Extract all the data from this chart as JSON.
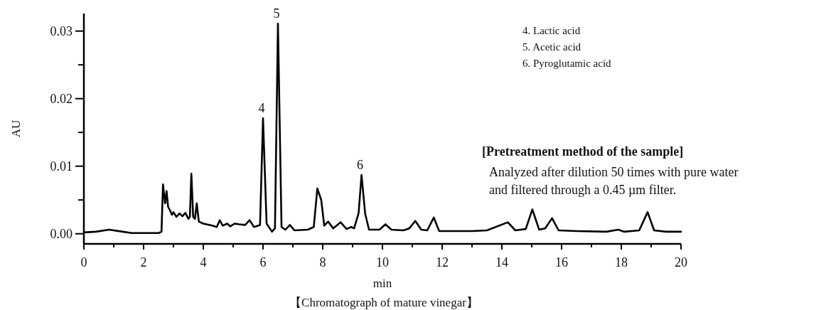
{
  "chart_data": {
    "type": "line",
    "title": "【Chromatograph of mature vinegar】",
    "xlabel": "min",
    "ylabel": "AU",
    "xlim": [
      0,
      20
    ],
    "ylim": [
      -0.0015,
      0.0326
    ],
    "xticks": [
      0,
      {
        "value": 1,
        "label": null
      },
      2,
      {
        "value": 3,
        "label": null
      },
      4,
      {
        "value": 5,
        "label": null
      },
      6,
      {
        "value": 7,
        "label": null
      },
      8,
      {
        "value": 9,
        "label": null
      },
      10,
      {
        "value": 11,
        "label": null
      },
      12,
      {
        "value": 13,
        "label": null
      },
      14,
      {
        "value": 15,
        "label": null
      },
      16,
      {
        "value": 17,
        "label": null
      },
      18,
      {
        "value": 19,
        "label": null
      },
      20
    ],
    "yticks": [
      {
        "value": 0,
        "label": "0.00"
      },
      {
        "value": 0.005,
        "label": null
      },
      0.01,
      {
        "value": 0.015,
        "label": null
      },
      0.02,
      {
        "value": 0.025,
        "label": null
      },
      0.03
    ],
    "series": [
      {
        "color": "#000000",
        "x": [
          0,
          0.4,
          0.85,
          1.3,
          1.6,
          2.0,
          2.5,
          2.6,
          2.65,
          2.72,
          2.77,
          2.82,
          2.88,
          2.95,
          3.0,
          3.1,
          3.2,
          3.3,
          3.4,
          3.5,
          3.55,
          3.6,
          3.66,
          3.72,
          3.78,
          3.85,
          4.0,
          4.3,
          4.45,
          4.55,
          4.65,
          4.8,
          4.9,
          5.05,
          5.2,
          5.4,
          5.55,
          5.7,
          5.9,
          6.0,
          6.12,
          6.3,
          6.4,
          6.5,
          6.62,
          6.75,
          6.9,
          7.05,
          7.5,
          7.7,
          7.82,
          7.95,
          8.05,
          8.18,
          8.35,
          8.6,
          8.8,
          8.95,
          9.05,
          9.2,
          9.3,
          9.42,
          9.55,
          9.9,
          10.1,
          10.3,
          10.7,
          10.9,
          11.1,
          11.3,
          11.5,
          11.72,
          11.9,
          12.5,
          13.0,
          13.5,
          14.2,
          14.45,
          14.8,
          15.02,
          15.25,
          15.45,
          15.68,
          15.9,
          16.5,
          17.5,
          17.9,
          18.1,
          18.6,
          18.88,
          19.1,
          19.5,
          20
        ],
        "values": [
          0.0002,
          0.0003,
          0.0006,
          0.0003,
          0.0001,
          0.0001,
          0.0001,
          0.0003,
          0.0073,
          0.0045,
          0.0063,
          0.004,
          0.0035,
          0.0028,
          0.0032,
          0.0025,
          0.003,
          0.0026,
          0.0031,
          0.0022,
          0.0025,
          0.0089,
          0.0025,
          0.0022,
          0.0045,
          0.0018,
          0.0015,
          0.0012,
          0.001,
          0.002,
          0.0012,
          0.0015,
          0.0011,
          0.0015,
          0.0014,
          0.0013,
          0.002,
          0.001,
          0.0013,
          0.0171,
          0.0015,
          0.0003,
          0.0008,
          0.0311,
          0.001,
          0.0006,
          0.0013,
          0.0005,
          0.0006,
          0.001,
          0.0067,
          0.005,
          0.0012,
          0.0018,
          0.0008,
          0.0017,
          0.0007,
          0.001,
          0.0008,
          0.003,
          0.0087,
          0.003,
          0.0006,
          0.0006,
          0.0014,
          0.0006,
          0.0005,
          0.0008,
          0.0019,
          0.0006,
          0.0005,
          0.0024,
          0.0004,
          0.0004,
          0.0004,
          0.0005,
          0.0017,
          0.0005,
          0.0007,
          0.0036,
          0.0006,
          0.0008,
          0.0023,
          0.0005,
          0.0004,
          0.0003,
          0.0006,
          0.0003,
          0.0005,
          0.0032,
          0.0005,
          0.0003,
          0.0003
        ]
      }
    ],
    "annotations": [
      {
        "text": "4",
        "x": 6.0,
        "y": 0.0171
      },
      {
        "text": "5",
        "x": 6.5,
        "y": 0.0311
      },
      {
        "text": "6",
        "x": 9.3,
        "y": 0.0087
      },
      "4. Lactic acid",
      "5. Acetic acid",
      "6. Pyroglutamic acid",
      "[Pretreatment method of the sample]",
      "Analyzed after dilution 50 times with pure water",
      "and filtered through a 0.45 µm filter."
    ]
  }
}
